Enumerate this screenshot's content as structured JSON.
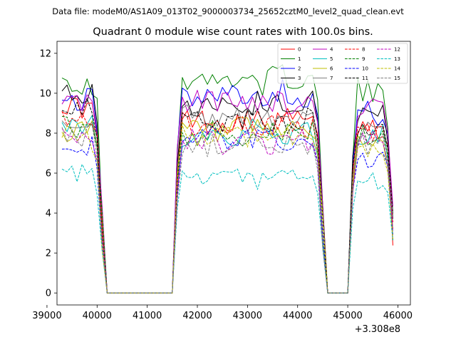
{
  "chart_data": {
    "type": "line",
    "suptitle": "Data file: modeM0/AS1A09_013T02_9000003734_25652cztM0_level2_quad_clean.evt",
    "title": "Quadrant 0 module wise count rates with 100.0s bins.",
    "xlabel": "",
    "ylabel": "",
    "x_offset_label": "+3.308e8",
    "xlim": [
      39200,
      46250
    ],
    "ylim": [
      -0.6,
      12.6
    ],
    "xticks": [
      39000,
      40000,
      41000,
      42000,
      43000,
      44000,
      45000,
      46000
    ],
    "xtick_labels": [
      "39000",
      "40000",
      "41000",
      "42000",
      "43000",
      "44000",
      "45000",
      "46000"
    ],
    "yticks": [
      0,
      2,
      4,
      6,
      8,
      10,
      12
    ],
    "ytick_labels": [
      "0",
      "2",
      "4",
      "6",
      "8",
      "10",
      "12"
    ],
    "legend_position": "top-right",
    "segments": [
      [
        39300,
        40100
      ],
      [
        41600,
        44500
      ],
      [
        45100,
        45900
      ]
    ],
    "series": [
      {
        "name": "0",
        "color": "#ff0000",
        "style": "solid",
        "levels": [
          9.2,
          8.6,
          8.2
        ]
      },
      {
        "name": "1",
        "color": "#008000",
        "style": "solid",
        "levels": [
          10.6,
          10.7,
          10.0
        ]
      },
      {
        "name": "2",
        "color": "#0000ff",
        "style": "solid",
        "levels": [
          9.8,
          10.0,
          9.1
        ]
      },
      {
        "name": "3",
        "color": "#000000",
        "style": "solid",
        "levels": [
          9.9,
          9.5,
          9.2
        ]
      },
      {
        "name": "4",
        "color": "#bf00bf",
        "style": "solid",
        "levels": [
          9.5,
          9.6,
          9.3
        ]
      },
      {
        "name": "5",
        "color": "#00bfbf",
        "style": "solid",
        "levels": [
          8.2,
          8.0,
          7.8
        ]
      },
      {
        "name": "6",
        "color": "#bfbf00",
        "style": "solid",
        "levels": [
          8.1,
          8.1,
          7.5
        ]
      },
      {
        "name": "7",
        "color": "#808080",
        "style": "solid",
        "levels": [
          8.4,
          8.7,
          8.0
        ]
      },
      {
        "name": "8",
        "color": "#ff0000",
        "style": "dashed",
        "levels": [
          8.8,
          8.4,
          8.1
        ]
      },
      {
        "name": "9",
        "color": "#008000",
        "style": "dashed",
        "levels": [
          8.5,
          8.0,
          7.9
        ]
      },
      {
        "name": "10",
        "color": "#0000ff",
        "style": "dashed",
        "levels": [
          7.3,
          7.7,
          6.8
        ]
      },
      {
        "name": "11",
        "color": "#000000",
        "style": "dashed",
        "levels": [
          9.0,
          8.6,
          8.3
        ]
      },
      {
        "name": "12",
        "color": "#bf00bf",
        "style": "dashed",
        "levels": [
          7.9,
          7.6,
          7.4
        ]
      },
      {
        "name": "13",
        "color": "#00bfbf",
        "style": "dashed",
        "levels": [
          5.9,
          5.7,
          5.6
        ]
      },
      {
        "name": "14",
        "color": "#bfbf00",
        "style": "dashed",
        "levels": [
          7.7,
          7.9,
          7.2
        ]
      },
      {
        "name": "15",
        "color": "#808080",
        "style": "dashed",
        "levels": [
          8.0,
          7.4,
          7.6
        ]
      }
    ]
  }
}
